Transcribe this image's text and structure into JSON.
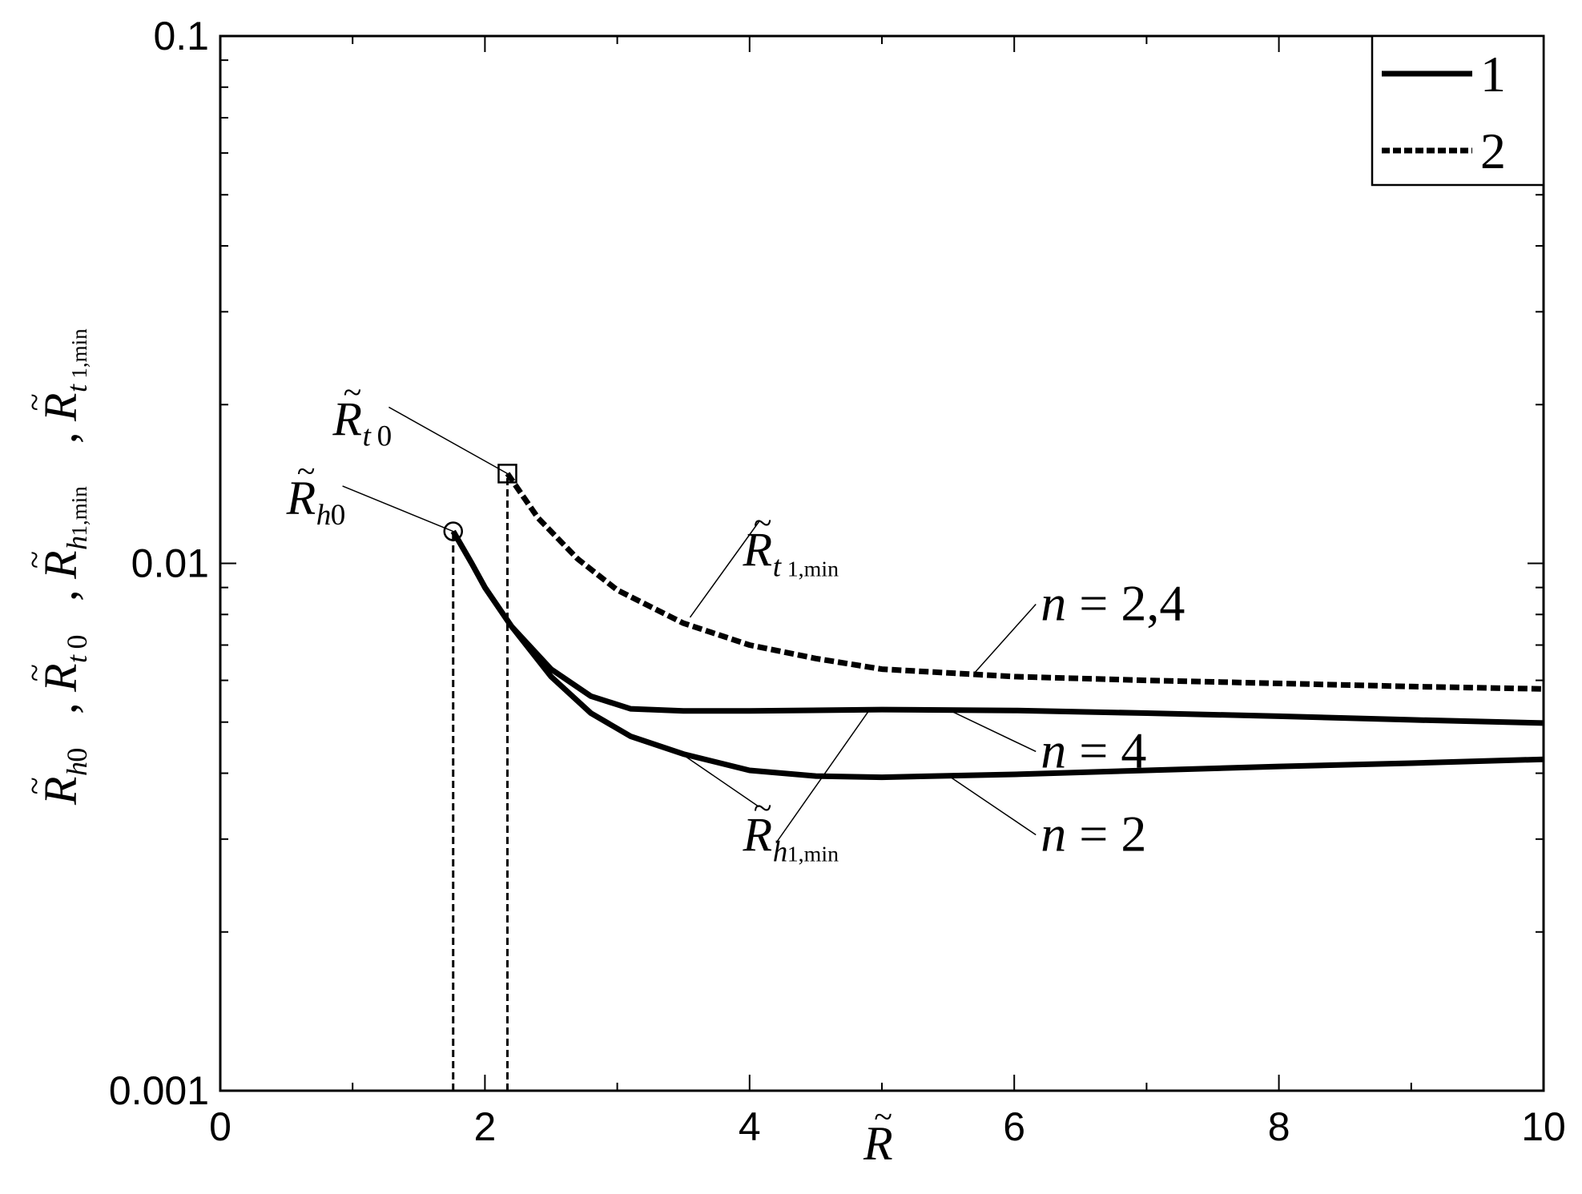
{
  "chart_data": {
    "type": "line",
    "x_scale": "linear",
    "y_scale": "log",
    "xlim": [
      0,
      10
    ],
    "ylim": [
      0.001,
      0.1
    ],
    "grid": false,
    "legend": {
      "position": "top-right",
      "entries": [
        {
          "label": "1",
          "style": "solid"
        },
        {
          "label": "2",
          "style": "dashed"
        }
      ]
    },
    "x_ticks": [
      {
        "value": 0,
        "label": "0"
      },
      {
        "value": 2,
        "label": "2"
      },
      {
        "value": 4,
        "label": "4"
      },
      {
        "value": 6,
        "label": "6"
      },
      {
        "value": 8,
        "label": "8"
      },
      {
        "value": 10,
        "label": "10"
      }
    ],
    "y_ticks": [
      {
        "value": 0.001,
        "label": "0.001"
      },
      {
        "value": 0.01,
        "label": "0.01"
      },
      {
        "value": 0.1,
        "label": "0.1"
      }
    ],
    "xlabel": {
      "base": "R",
      "accent": "~"
    },
    "ylabel": [
      {
        "base": "R",
        "sub": "h0",
        "sep": ", "
      },
      {
        "base": "R",
        "sub": "t0",
        "sep": ", "
      },
      {
        "base": "R",
        "sub": "h1,min",
        "sep": ", "
      },
      {
        "base": "R",
        "sub": "t1,min",
        "sep": ""
      }
    ],
    "series": [
      {
        "style": "dashed",
        "points": [
          [
            2.17,
            0.0148
          ],
          [
            2.4,
            0.0122
          ],
          [
            2.7,
            0.0102
          ],
          [
            3.0,
            0.0089
          ],
          [
            3.5,
            0.0077
          ],
          [
            4.0,
            0.007
          ],
          [
            4.5,
            0.0066
          ],
          [
            5.0,
            0.0063
          ],
          [
            6.0,
            0.0061
          ],
          [
            7.0,
            0.006
          ],
          [
            8.0,
            0.00592
          ],
          [
            9.0,
            0.00584
          ],
          [
            10.0,
            0.00578
          ]
        ]
      },
      {
        "style": "solid",
        "points": [
          [
            1.76,
            0.0115
          ],
          [
            1.9,
            0.01
          ],
          [
            2.0,
            0.009
          ],
          [
            2.2,
            0.0076
          ],
          [
            2.5,
            0.0063
          ],
          [
            2.8,
            0.0056
          ],
          [
            3.1,
            0.0053
          ],
          [
            3.5,
            0.00525
          ],
          [
            4.0,
            0.00525
          ],
          [
            5.0,
            0.00528
          ],
          [
            6.0,
            0.00526
          ],
          [
            7.0,
            0.0052
          ],
          [
            8.0,
            0.00513
          ],
          [
            9.0,
            0.00505
          ],
          [
            10.0,
            0.00498
          ]
        ]
      },
      {
        "style": "solid",
        "points": [
          [
            1.76,
            0.0115
          ],
          [
            1.9,
            0.01
          ],
          [
            2.0,
            0.009
          ],
          [
            2.2,
            0.0076
          ],
          [
            2.5,
            0.0061
          ],
          [
            2.8,
            0.0052
          ],
          [
            3.1,
            0.0047
          ],
          [
            3.5,
            0.00435
          ],
          [
            4.0,
            0.00405
          ],
          [
            4.5,
            0.00395
          ],
          [
            5.0,
            0.00393
          ],
          [
            6.0,
            0.00398
          ],
          [
            7.0,
            0.00405
          ],
          [
            8.0,
            0.00412
          ],
          [
            9.0,
            0.00418
          ],
          [
            10.0,
            0.00425
          ]
        ]
      }
    ],
    "markers": [
      {
        "shape": "circle",
        "x": 1.76,
        "y": 0.0115
      },
      {
        "shape": "square",
        "x": 2.17,
        "y": 0.0148
      }
    ],
    "vlines": [
      {
        "x": 1.76,
        "y_top": 0.0115
      },
      {
        "x": 2.17,
        "y_top": 0.0148
      }
    ],
    "annotations": [
      {
        "text": "",
        "label": "R",
        "sub": "t0",
        "label_x": 0.85,
        "label_y": 0.0175,
        "target_x": 2.17,
        "target_y": 0.0148
      },
      {
        "text": "",
        "label": "R",
        "sub": "h0",
        "label_x": 0.5,
        "label_y": 0.0124,
        "target_x": 1.76,
        "target_y": 0.0115
      },
      {
        "text": "",
        "label": "R",
        "sub": "t1,min",
        "label_x": 3.95,
        "label_y": 0.0099,
        "target_x": 3.55,
        "target_y": 0.0079
      },
      {
        "text": "n = 2,4",
        "label_x": 6.2,
        "label_y": 0.0078,
        "target_x": 5.7,
        "target_y": 0.0062
      },
      {
        "text": "n = 4",
        "label_x": 6.2,
        "label_y": 0.0041,
        "target_x": 5.5,
        "target_y": 0.00528
      },
      {
        "text": "n = 2",
        "label_x": 6.2,
        "label_y": 0.00285,
        "target_x": 5.5,
        "target_y": 0.00396
      },
      {
        "text": "",
        "label": "R",
        "sub": "h1,min",
        "label_x": 3.95,
        "label_y": 0.00285,
        "target_x": 3.5,
        "target_y": 0.00433
      },
      {
        "text": "",
        "label": "",
        "sub": "",
        "label_x": 4.2,
        "label_y": 0.00295,
        "target_x": 4.9,
        "target_y": 0.00525
      }
    ]
  }
}
